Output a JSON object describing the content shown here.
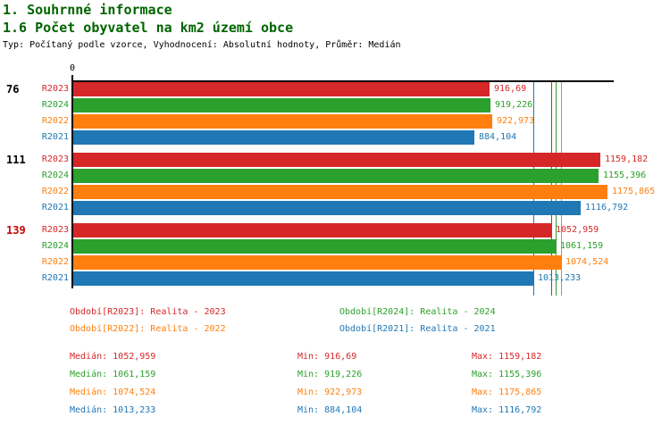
{
  "header": {
    "title1": "1. Souhrnné informace",
    "title2": "1.6 Počet obyvatel na km2 území obce",
    "subtitle": "Typ: Počítaný podle vzorce, Vyhodnocení: Absolutní hodnoty, Průměr: Medián",
    "title_color": "#006400"
  },
  "colors": {
    "R2023": "#d62728",
    "R2024": "#2ca02c",
    "R2022": "#ff7f0e",
    "R2021": "#1f77b4",
    "axis": "#000000",
    "group_label_default": "#000000",
    "group_label_highlight": "#cc0000"
  },
  "chart_data": {
    "type": "bar",
    "orientation": "horizontal",
    "title": "1.6 Počet obyvatel na km2 území obce",
    "xlabel": "",
    "ylabel": "",
    "xlim": [
      0,
      1189
    ],
    "origin_tick_label": "0",
    "grid": false,
    "series_order": [
      "R2023",
      "R2024",
      "R2022",
      "R2021"
    ],
    "groups": [
      {
        "label": "76",
        "label_color": "#000000",
        "bars": [
          {
            "series": "R2023",
            "value": 916.69,
            "value_label": "916,69"
          },
          {
            "series": "R2024",
            "value": 919.226,
            "value_label": "919,226"
          },
          {
            "series": "R2022",
            "value": 922.973,
            "value_label": "922,973"
          },
          {
            "series": "R2021",
            "value": 884.104,
            "value_label": "884,104"
          }
        ]
      },
      {
        "label": "111",
        "label_color": "#000000",
        "bars": [
          {
            "series": "R2023",
            "value": 1159.182,
            "value_label": "1159,182"
          },
          {
            "series": "R2024",
            "value": 1155.396,
            "value_label": "1155,396"
          },
          {
            "series": "R2022",
            "value": 1175.865,
            "value_label": "1175,865"
          },
          {
            "series": "R2021",
            "value": 1116.792,
            "value_label": "1116,792"
          }
        ]
      },
      {
        "label": "139",
        "label_color": "#cc0000",
        "bars": [
          {
            "series": "R2023",
            "value": 1052.959,
            "value_label": "1052,959"
          },
          {
            "series": "R2024",
            "value": 1061.159,
            "value_label": "1061,159"
          },
          {
            "series": "R2022",
            "value": 1074.524,
            "value_label": "1074,524"
          },
          {
            "series": "R2021",
            "value": 1013.233,
            "value_label": "1013,233"
          }
        ]
      }
    ],
    "median_lines": [
      {
        "series": "R2021",
        "value": 1013.233
      },
      {
        "series": "R2023",
        "value": 1052.959
      },
      {
        "series": "R2024",
        "value": 1061.159
      },
      {
        "series": "R2022",
        "value": 1074.524
      }
    ]
  },
  "legend": [
    {
      "series": "R2023",
      "label": "Období[R2023]: Realita - 2023",
      "col": 0,
      "row": 0
    },
    {
      "series": "R2024",
      "label": "Období[R2024]: Realita - 2024",
      "col": 1,
      "row": 0
    },
    {
      "series": "R2022",
      "label": "Období[R2022]: Realita - 2022",
      "col": 0,
      "row": 1
    },
    {
      "series": "R2021",
      "label": "Období[R2021]: Realita - 2021",
      "col": 1,
      "row": 1
    }
  ],
  "stats": [
    {
      "series": "R2023",
      "median": "Medián: 1052,959",
      "min": "Min: 916,69",
      "max": "Max: 1159,182"
    },
    {
      "series": "R2024",
      "median": "Medián: 1061,159",
      "min": "Min: 919,226",
      "max": "Max: 1155,396"
    },
    {
      "series": "R2022",
      "median": "Medián: 1074,524",
      "min": "Min: 922,973",
      "max": "Max: 1175,865"
    },
    {
      "series": "R2021",
      "median": "Medián: 1013,233",
      "min": "Min: 884,104",
      "max": "Max: 1116,792"
    }
  ]
}
